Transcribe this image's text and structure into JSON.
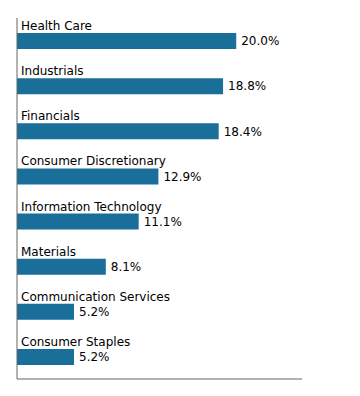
{
  "chart_data": {
    "type": "bar",
    "orientation": "horizontal",
    "categories": [
      "Consumer Staples",
      "Communication Services",
      "Materials",
      "Information Technology",
      "Consumer Discretionary",
      "Financials",
      "Industrials",
      "Health Care"
    ],
    "values": [
      5.2,
      5.2,
      8.1,
      11.1,
      12.9,
      18.4,
      18.8,
      20.0
    ],
    "value_labels": [
      "5.2%",
      "5.2%",
      "8.1%",
      "11.1%",
      "12.9%",
      "18.4%",
      "18.8%",
      "20.0%"
    ],
    "data_labels": true,
    "color": "#1a6e9a",
    "xlim": [
      0,
      26
    ],
    "tick_labels": false
  }
}
